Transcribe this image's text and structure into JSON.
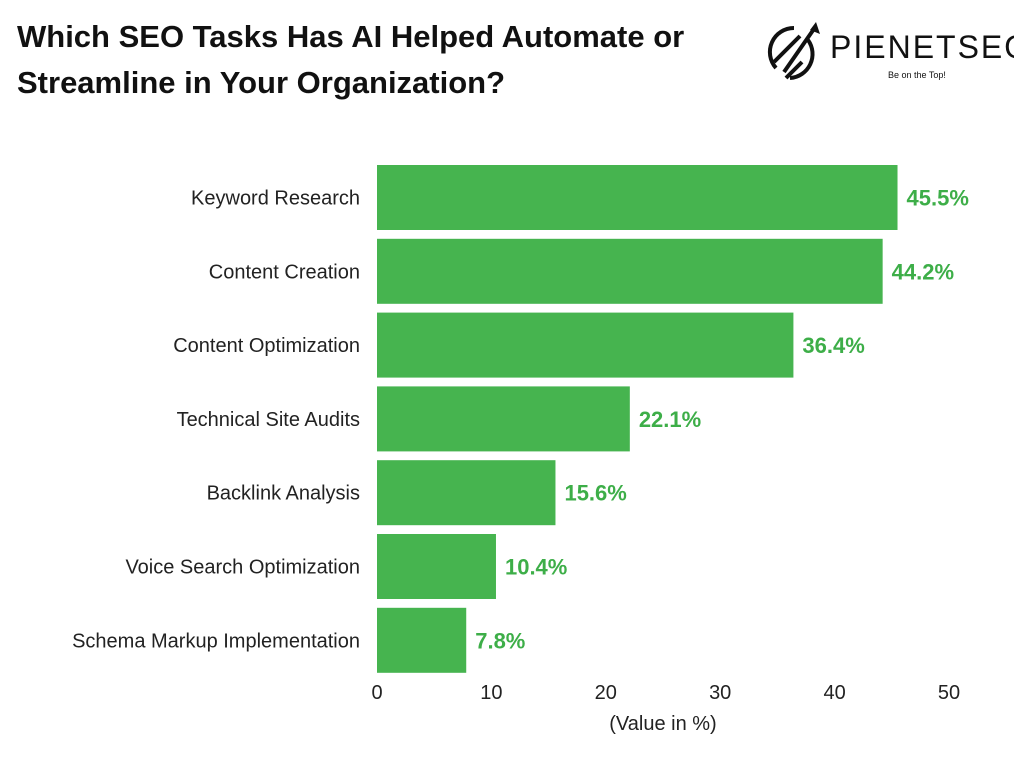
{
  "title": "Which SEO Tasks Has AI Helped Automate or Streamline in Your Organization?",
  "logo": {
    "name": "PIENETSEO",
    "tagline": "Be on the Top!"
  },
  "colors": {
    "bar": "#46B44F",
    "label": "#3DAE48",
    "text": "#222222"
  },
  "chart_data": {
    "type": "bar",
    "orientation": "horizontal",
    "title": "Which SEO Tasks Has AI Helped Automate or Streamline in Your Organization?",
    "categories": [
      "Keyword Research",
      "Content Creation",
      "Content Optimization",
      "Technical Site Audits",
      "Backlink Analysis",
      "Voice Search Optimization",
      "Schema Markup Implementation"
    ],
    "values": [
      45.5,
      44.2,
      36.4,
      22.1,
      15.6,
      10.4,
      7.8
    ],
    "data_labels": [
      "45.5%",
      "44.2%",
      "36.4%",
      "22.1%",
      "15.6%",
      "10.4%",
      "7.8%"
    ],
    "xlabel": "(Value in %)",
    "ylabel": "",
    "xlim": [
      0,
      50
    ],
    "xticks": [
      "0",
      "10",
      "20",
      "30",
      "40",
      "50"
    ],
    "grid": false,
    "legend": "none"
  }
}
